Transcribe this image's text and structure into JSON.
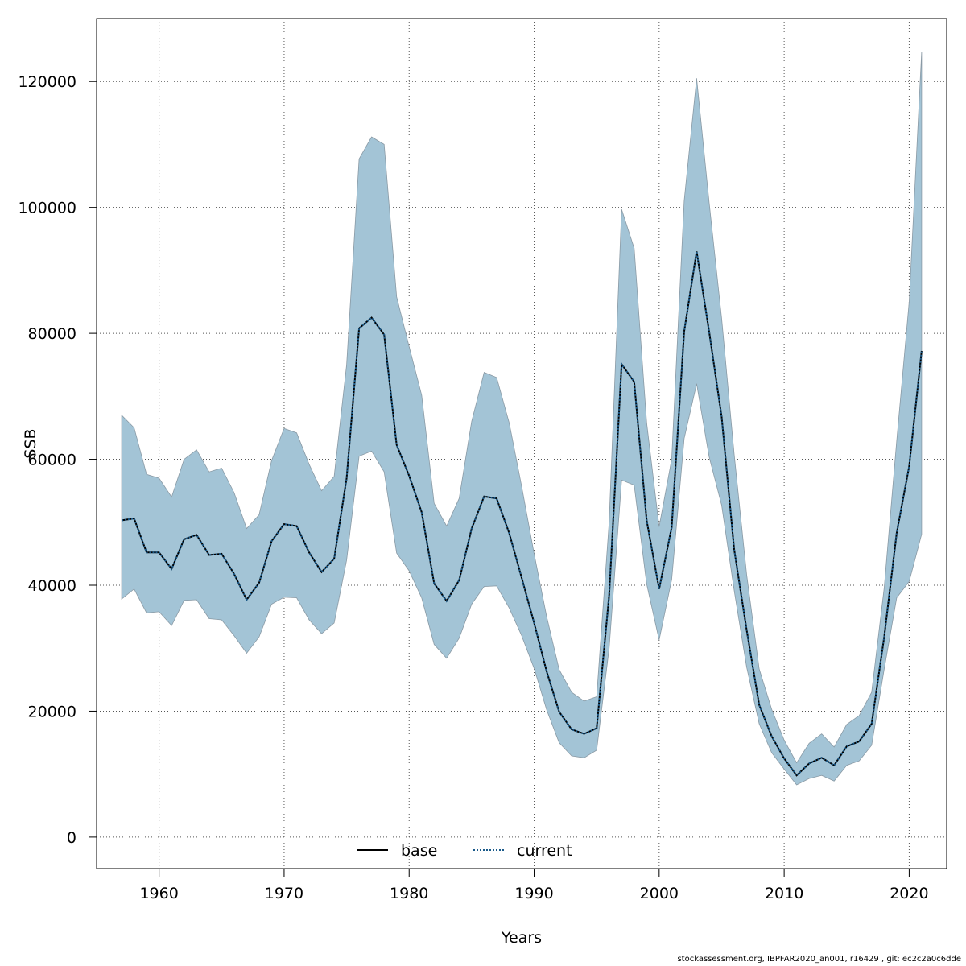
{
  "chart_data": {
    "type": "area",
    "title": "",
    "xlabel": "Years",
    "ylabel": "SSB",
    "xlim": [
      1955,
      2023
    ],
    "ylim": [
      -5000,
      130000
    ],
    "x_ticks": [
      1960,
      1970,
      1980,
      1990,
      2000,
      2010,
      2020
    ],
    "x_tick_labels": [
      "1960",
      "1970",
      "1980",
      "1990",
      "2000",
      "2010",
      "2020"
    ],
    "y_ticks": [
      0,
      20000,
      40000,
      60000,
      80000,
      100000,
      120000
    ],
    "y_tick_labels": [
      "0",
      "20000",
      "40000",
      "60000",
      "80000",
      "100000",
      "120000"
    ],
    "grid": true,
    "legend_position": "bottom-center",
    "legend": [
      {
        "name": "base",
        "style": "solid",
        "color": "#000000"
      },
      {
        "name": "current",
        "style": "dotted",
        "color": "#000000"
      }
    ],
    "colors": {
      "band": "#a3c4d6",
      "band_edge": "#8a9aa5",
      "grid": "#555555"
    },
    "years": [
      1957,
      1958,
      1959,
      1960,
      1961,
      1962,
      1963,
      1964,
      1965,
      1966,
      1967,
      1968,
      1969,
      1970,
      1971,
      1972,
      1973,
      1974,
      1975,
      1976,
      1977,
      1978,
      1979,
      1980,
      1981,
      1982,
      1983,
      1984,
      1985,
      1986,
      1987,
      1988,
      1989,
      1990,
      1991,
      1992,
      1993,
      1994,
      1995,
      1996,
      1997,
      1998,
      1999,
      2000,
      2001,
      2002,
      2003,
      2004,
      2005,
      2006,
      2007,
      2008,
      2009,
      2010,
      2011,
      2012,
      2013,
      2014,
      2015,
      2016,
      2017,
      2018,
      2019,
      2020,
      2021
    ],
    "series": [
      {
        "name": "base",
        "values": [
          50300,
          50600,
          45200,
          45200,
          42600,
          47300,
          48000,
          44800,
          45000,
          41800,
          37700,
          40400,
          47000,
          49700,
          49400,
          45200,
          42100,
          44200,
          57000,
          80800,
          82500,
          79800,
          62300,
          57400,
          51600,
          40300,
          37500,
          40800,
          49000,
          54100,
          53800,
          48300,
          41200,
          34000,
          26300,
          19900,
          17100,
          16400,
          17300,
          38400,
          75100,
          72300,
          50300,
          39400,
          49200,
          80300,
          93000,
          80300,
          66700,
          45700,
          32900,
          21000,
          16000,
          12500,
          9800,
          11700,
          12600,
          11400,
          14400,
          15200,
          18000,
          31800,
          48300,
          58900,
          77200
        ]
      },
      {
        "name": "current",
        "values": [
          50300,
          50600,
          45200,
          45200,
          42600,
          47300,
          48000,
          44800,
          45000,
          41800,
          37700,
          40400,
          47000,
          49700,
          49400,
          45200,
          42100,
          44200,
          57000,
          80800,
          82500,
          79800,
          62300,
          57400,
          51600,
          40300,
          37500,
          40800,
          49000,
          54100,
          53800,
          48300,
          41200,
          34000,
          26300,
          19900,
          17100,
          16400,
          17300,
          38400,
          75100,
          72300,
          50300,
          39400,
          49200,
          80300,
          93000,
          80300,
          66700,
          45700,
          32900,
          21000,
          16000,
          12500,
          9800,
          11700,
          12600,
          11400,
          14400,
          15200,
          18000,
          31800,
          48300,
          58900,
          77200
        ]
      }
    ],
    "confidence_band": {
      "lower": [
        37800,
        39400,
        35600,
        35800,
        33600,
        37600,
        37700,
        34700,
        34500,
        32000,
        29200,
        31800,
        37000,
        38100,
        38000,
        34500,
        32300,
        34000,
        44000,
        60500,
        61300,
        58000,
        45100,
        42300,
        38000,
        30600,
        28400,
        31600,
        37000,
        39800,
        39900,
        36400,
        32000,
        26800,
        20200,
        15000,
        12900,
        12600,
        13800,
        30000,
        56700,
        55900,
        40200,
        31300,
        40900,
        63300,
        72000,
        60400,
        52700,
        39200,
        27000,
        18000,
        13400,
        10800,
        8300,
        9300,
        9800,
        8900,
        11400,
        12100,
        14600,
        26700,
        38000,
        40600,
        48100
      ],
      "upper": [
        67000,
        65000,
        57600,
        57000,
        54000,
        60000,
        61500,
        58000,
        58600,
        54700,
        49000,
        51200,
        59800,
        64900,
        64200,
        59200,
        55000,
        57300,
        75000,
        107700,
        111200,
        110000,
        85800,
        77900,
        70200,
        53000,
        49400,
        53800,
        66000,
        73800,
        73000,
        65800,
        55700,
        45000,
        35000,
        26600,
        23000,
        21600,
        22300,
        50000,
        99700,
        93500,
        65800,
        49300,
        60000,
        101000,
        120500,
        100800,
        82300,
        60800,
        41700,
        26700,
        20300,
        15400,
        11800,
        14900,
        16400,
        14300,
        17900,
        19300,
        23000,
        39600,
        62900,
        85000,
        124700
      ]
    }
  },
  "footer": "stockassessment.org, IBPFAR2020_an001, r16429 , git: ec2c2a0c6dde"
}
